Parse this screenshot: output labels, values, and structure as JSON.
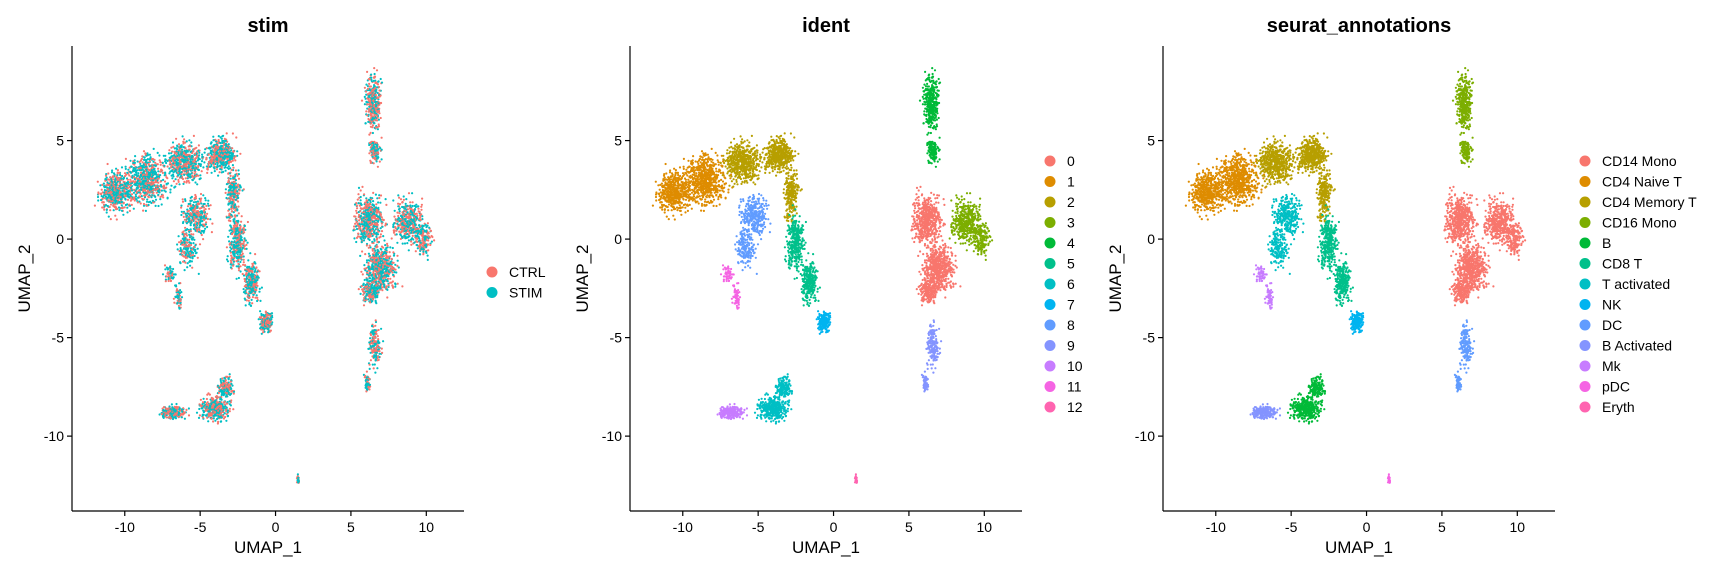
{
  "chart_data": [
    {
      "type": "scatter",
      "title": "stim",
      "xlabel": "UMAP_1",
      "ylabel": "UMAP_2",
      "xlim": [
        -13.5,
        12.5
      ],
      "ylim": [
        -13.8,
        9.8
      ],
      "xticks": [
        -10,
        -5,
        0,
        5,
        10
      ],
      "yticks": [
        -10,
        -5,
        0,
        5
      ],
      "grid": false,
      "legend_placement": "right",
      "legend": [
        {
          "label": "CTRL",
          "color": "#F8766D"
        },
        {
          "label": "STIM",
          "color": "#00BFC4"
        }
      ]
    },
    {
      "type": "scatter",
      "title": "ident",
      "xlabel": "UMAP_1",
      "ylabel": "UMAP_2",
      "xlim": [
        -13.5,
        12.5
      ],
      "ylim": [
        -13.8,
        9.8
      ],
      "xticks": [
        -10,
        -5,
        0,
        5,
        10
      ],
      "yticks": [
        -10,
        -5,
        0,
        5
      ],
      "grid": false,
      "legend_placement": "right",
      "legend": [
        {
          "label": "0",
          "color": "#F8766D"
        },
        {
          "label": "1",
          "color": "#DE8C00"
        },
        {
          "label": "2",
          "color": "#B79F00"
        },
        {
          "label": "3",
          "color": "#7CAE00"
        },
        {
          "label": "4",
          "color": "#00BA38"
        },
        {
          "label": "5",
          "color": "#00C08B"
        },
        {
          "label": "6",
          "color": "#00BFC4"
        },
        {
          "label": "7",
          "color": "#00B4F0"
        },
        {
          "label": "8",
          "color": "#619CFF"
        },
        {
          "label": "9",
          "color": "#8494FF"
        },
        {
          "label": "10",
          "color": "#C77CFF"
        },
        {
          "label": "11",
          "color": "#F564E3"
        },
        {
          "label": "12",
          "color": "#FF64B0"
        }
      ]
    },
    {
      "type": "scatter",
      "title": "seurat_annotations",
      "xlabel": "UMAP_1",
      "ylabel": "UMAP_2",
      "xlim": [
        -13.5,
        12.5
      ],
      "ylim": [
        -13.8,
        9.8
      ],
      "xticks": [
        -10,
        -5,
        0,
        5,
        10
      ],
      "yticks": [
        -10,
        -5,
        0,
        5
      ],
      "grid": false,
      "legend_placement": "right",
      "legend": [
        {
          "label": "CD14 Mono",
          "color": "#F8766D"
        },
        {
          "label": "CD4 Naive T",
          "color": "#DE8C00"
        },
        {
          "label": "CD4 Memory T",
          "color": "#B79F00"
        },
        {
          "label": "CD16 Mono",
          "color": "#7CAE00"
        },
        {
          "label": "B",
          "color": "#00BA38"
        },
        {
          "label": "CD8 T",
          "color": "#00C08B"
        },
        {
          "label": "T activated",
          "color": "#00BFC4"
        },
        {
          "label": "NK",
          "color": "#00B4F0"
        },
        {
          "label": "DC",
          "color": "#619CFF"
        },
        {
          "label": "B Activated",
          "color": "#8494FF"
        },
        {
          "label": "Mk",
          "color": "#C77CFF"
        },
        {
          "label": "pDC",
          "color": "#F564E3"
        },
        {
          "label": "Eryth",
          "color": "#FF64B0"
        }
      ]
    }
  ]
}
